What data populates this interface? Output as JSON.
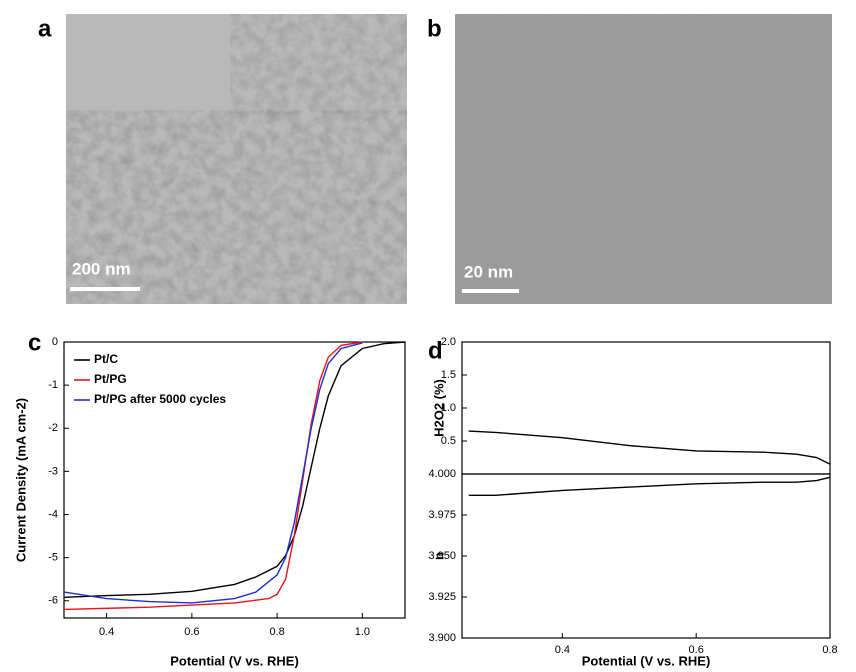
{
  "panel_labels": [
    "a",
    "b",
    "c",
    "d"
  ],
  "images": [
    {
      "scale_bar": "200 nm"
    },
    {
      "scale_bar": "20 nm"
    }
  ],
  "chart_data": [
    {
      "type": "line",
      "xlabel": "Potential (V vs. RHE)",
      "ylabel": "Current Density (mA cm-2)",
      "xlim": [
        0.3,
        1.1
      ],
      "xticks": [
        0.4,
        0.6,
        0.8,
        {
          "value": 1.0,
          "label": "1.0"
        }
      ],
      "ylim": [
        -6.4,
        0
      ],
      "yticks": [
        0,
        -1,
        -2,
        -3,
        -4,
        -5,
        -6
      ],
      "legend": "upper-left",
      "series": [
        {
          "name": "Pt/C",
          "color": "#000000",
          "x": [
            0.3,
            0.4,
            0.5,
            0.6,
            0.7,
            0.75,
            0.8,
            0.82,
            0.84,
            0.86,
            0.88,
            0.9,
            0.92,
            0.95,
            1.0,
            1.05,
            1.1
          ],
          "values": [
            -5.92,
            -5.88,
            -5.85,
            -5.78,
            -5.62,
            -5.45,
            -5.2,
            -4.95,
            -4.5,
            -3.8,
            -2.9,
            -2.0,
            -1.25,
            -0.55,
            -0.15,
            -0.04,
            0
          ]
        },
        {
          "name": "Pt/PG",
          "color": "#e8141b",
          "x": [
            0.3,
            0.5,
            0.7,
            0.78,
            0.8,
            0.82,
            0.84,
            0.86,
            0.88,
            0.9,
            0.92,
            0.95,
            1.0
          ],
          "values": [
            -6.2,
            -6.15,
            -6.05,
            -5.95,
            -5.85,
            -5.5,
            -4.5,
            -3.2,
            -1.9,
            -0.9,
            -0.35,
            -0.08,
            0
          ]
        },
        {
          "name": "Pt/PG after 5000 cycles",
          "color": "#1f2fd6",
          "x": [
            0.3,
            0.4,
            0.5,
            0.6,
            0.7,
            0.75,
            0.8,
            0.82,
            0.84,
            0.86,
            0.88,
            0.9,
            0.92,
            0.95,
            1.0
          ],
          "values": [
            -5.8,
            -5.95,
            -6.02,
            -6.05,
            -5.95,
            -5.8,
            -5.4,
            -5.0,
            -4.2,
            -3.1,
            -2.0,
            -1.1,
            -0.5,
            -0.15,
            -0.02
          ]
        }
      ]
    },
    {
      "type": "line",
      "ylabel": "H2O2 (%)",
      "xlim": [
        0.25,
        0.8
      ],
      "ylim": [
        0,
        2
      ],
      "yticks": [
        0.5,
        {
          "value": 1.0,
          "label": "1.0"
        },
        1.5,
        {
          "value": 2.0,
          "label": "2.0"
        }
      ],
      "series": [
        {
          "color": "#000000",
          "x": [
            0.26,
            0.3,
            0.4,
            0.5,
            0.6,
            0.7,
            0.75,
            0.78,
            0.8
          ],
          "values": [
            0.65,
            0.63,
            0.55,
            0.43,
            0.35,
            0.33,
            0.3,
            0.25,
            0.15
          ]
        }
      ]
    },
    {
      "type": "line",
      "xlabel": "Potential (V vs. RHE)",
      "ylabel": "n",
      "xlim": [
        0.25,
        0.8
      ],
      "xticks": [
        0.4,
        0.6,
        0.8
      ],
      "ylim": [
        3.9,
        4.0
      ],
      "yticks": [
        {
          "value": 3.9,
          "label": "3.900"
        },
        3.925,
        {
          "value": 3.95,
          "label": "3.950"
        },
        3.975,
        {
          "value": 4.0,
          "label": "4.000"
        }
      ],
      "series": [
        {
          "color": "#000000",
          "x": [
            0.26,
            0.3,
            0.4,
            0.5,
            0.6,
            0.7,
            0.75,
            0.78,
            0.8
          ],
          "values": [
            3.987,
            3.987,
            3.99,
            3.992,
            3.994,
            3.995,
            3.995,
            3.996,
            3.998
          ]
        }
      ]
    }
  ]
}
